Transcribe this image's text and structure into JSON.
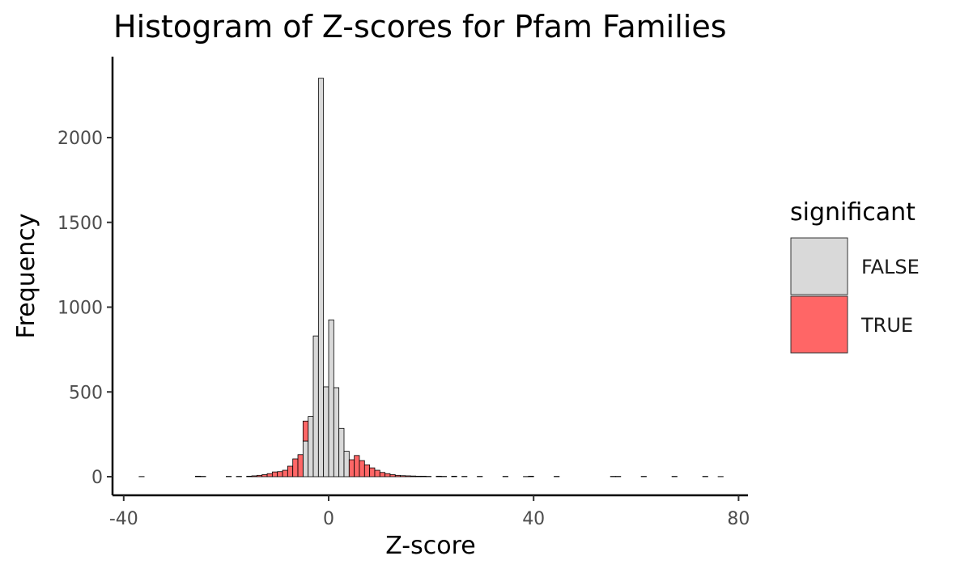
{
  "chart_data": {
    "type": "bar",
    "title": "Histogram of Z-scores for Pfam Families",
    "xlabel": "Z-score",
    "ylabel": "Frequency",
    "xlim": [
      -37,
      77
    ],
    "ylim": [
      -100,
      2550
    ],
    "x_ticks": [
      -40,
      0,
      40,
      80
    ],
    "x_tick_labels": [
      "-40",
      "0",
      "40",
      "80"
    ],
    "y_ticks": [
      0,
      500,
      1000,
      1500,
      2000
    ],
    "y_tick_labels": [
      "0",
      "500",
      "1000",
      "1500",
      "2000"
    ],
    "grid": false,
    "bin_width": 1,
    "legend": {
      "title": "significant",
      "placement": "right",
      "entries": [
        {
          "label": "FALSE",
          "color": "#d9d9d9"
        },
        {
          "label": "TRUE",
          "color": "#ff6666"
        }
      ]
    },
    "series": [
      {
        "name": "FALSE",
        "color": "#d9d9d9",
        "bins": [
          {
            "x": -4.5,
            "value": 210
          },
          {
            "x": -3.5,
            "value": 355
          },
          {
            "x": -2.5,
            "value": 830
          },
          {
            "x": -1.5,
            "value": 2350
          },
          {
            "x": -0.5,
            "value": 530
          },
          {
            "x": 0.5,
            "value": 925
          },
          {
            "x": 1.5,
            "value": 525
          },
          {
            "x": 2.5,
            "value": 285
          },
          {
            "x": 3.5,
            "value": 150
          }
        ]
      },
      {
        "name": "TRUE",
        "color": "#ff6666",
        "bins": [
          {
            "x": -36.5,
            "value": 1
          },
          {
            "x": -25.5,
            "value": 3
          },
          {
            "x": -24.5,
            "value": 2
          },
          {
            "x": -19.5,
            "value": 2
          },
          {
            "x": -17.5,
            "value": 2
          },
          {
            "x": -15.5,
            "value": 3
          },
          {
            "x": -14.5,
            "value": 5
          },
          {
            "x": -13.5,
            "value": 8
          },
          {
            "x": -12.5,
            "value": 12
          },
          {
            "x": -11.5,
            "value": 18
          },
          {
            "x": -10.5,
            "value": 28
          },
          {
            "x": -9.5,
            "value": 30
          },
          {
            "x": -8.5,
            "value": 38
          },
          {
            "x": -7.5,
            "value": 62
          },
          {
            "x": -6.5,
            "value": 105
          },
          {
            "x": -5.5,
            "value": 130
          },
          {
            "x": -4.5,
            "value": 118
          },
          {
            "x": 4.5,
            "value": 100
          },
          {
            "x": 5.5,
            "value": 125
          },
          {
            "x": 6.5,
            "value": 95
          },
          {
            "x": 7.5,
            "value": 70
          },
          {
            "x": 8.5,
            "value": 52
          },
          {
            "x": 9.5,
            "value": 38
          },
          {
            "x": 10.5,
            "value": 25
          },
          {
            "x": 11.5,
            "value": 18
          },
          {
            "x": 12.5,
            "value": 12
          },
          {
            "x": 13.5,
            "value": 8
          },
          {
            "x": 14.5,
            "value": 6
          },
          {
            "x": 15.5,
            "value": 5
          },
          {
            "x": 16.5,
            "value": 4
          },
          {
            "x": 17.5,
            "value": 3
          },
          {
            "x": 18.5,
            "value": 3
          },
          {
            "x": 19.5,
            "value": 2
          },
          {
            "x": 21.5,
            "value": 3
          },
          {
            "x": 22.5,
            "value": 2
          },
          {
            "x": 24.5,
            "value": 3
          },
          {
            "x": 26.5,
            "value": 2
          },
          {
            "x": 29.5,
            "value": 2
          },
          {
            "x": 34.5,
            "value": 2
          },
          {
            "x": 38.5,
            "value": 1
          },
          {
            "x": 39.5,
            "value": 3
          },
          {
            "x": 44.5,
            "value": 2
          },
          {
            "x": 55.5,
            "value": 2
          },
          {
            "x": 56.5,
            "value": 2
          },
          {
            "x": 61.5,
            "value": 2
          },
          {
            "x": 67.5,
            "value": 2
          },
          {
            "x": 73.5,
            "value": 2
          },
          {
            "x": 76.5,
            "value": 1
          }
        ]
      }
    ]
  }
}
